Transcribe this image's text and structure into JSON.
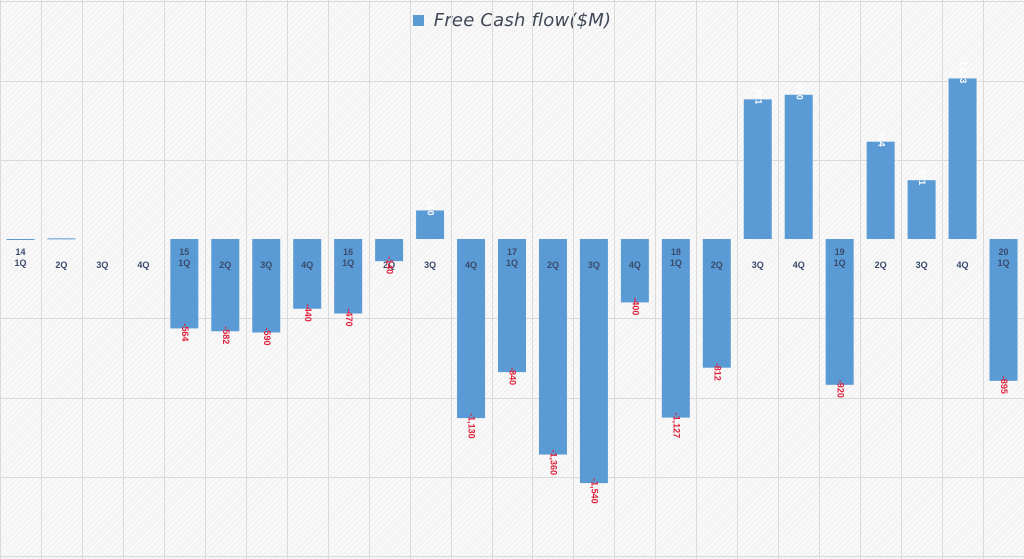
{
  "legend": {
    "label": "Free Cash flow($M)"
  },
  "colors": {
    "bar": "#5b9bd5",
    "negative_label": "#e0203a",
    "positive_label": "#ffffff",
    "category_label": "#3a4a6b",
    "grid": "#dadada"
  },
  "chart_data": {
    "type": "bar",
    "categories": [
      {
        "year": "14",
        "quarter": "1Q"
      },
      {
        "year": "",
        "quarter": "2Q"
      },
      {
        "year": "",
        "quarter": "3Q"
      },
      {
        "year": "",
        "quarter": "4Q"
      },
      {
        "year": "15",
        "quarter": "1Q"
      },
      {
        "year": "",
        "quarter": "2Q"
      },
      {
        "year": "",
        "quarter": "3Q"
      },
      {
        "year": "",
        "quarter": "4Q"
      },
      {
        "year": "16",
        "quarter": "1Q"
      },
      {
        "year": "",
        "quarter": "2Q"
      },
      {
        "year": "",
        "quarter": "3Q"
      },
      {
        "year": "",
        "quarter": "4Q"
      },
      {
        "year": "17",
        "quarter": "1Q"
      },
      {
        "year": "",
        "quarter": "2Q"
      },
      {
        "year": "",
        "quarter": "3Q"
      },
      {
        "year": "",
        "quarter": "4Q"
      },
      {
        "year": "18",
        "quarter": "1Q"
      },
      {
        "year": "",
        "quarter": "2Q"
      },
      {
        "year": "",
        "quarter": "3Q"
      },
      {
        "year": "",
        "quarter": "4Q"
      },
      {
        "year": "19",
        "quarter": "1Q"
      },
      {
        "year": "",
        "quarter": "2Q"
      },
      {
        "year": "",
        "quarter": "3Q"
      },
      {
        "year": "",
        "quarter": "4Q"
      },
      {
        "year": "20",
        "quarter": "1Q"
      }
    ],
    "series": [
      {
        "name": "Free Cash flow($M)",
        "values": [
          -2,
          4,
          0,
          0,
          -564,
          -582,
          -590,
          -440,
          -470,
          -140,
          180,
          -1130,
          -840,
          -1360,
          -1540,
          -400,
          -1127,
          -812,
          881,
          910,
          -920,
          614,
          371,
          1013,
          -895
        ],
        "labels": [
          "",
          "",
          "",
          "",
          "-564",
          "-582",
          "-590",
          "-440",
          "-470",
          "-140",
          "180",
          "-1,130",
          "-840",
          "-1,360",
          "-1,540",
          "-400",
          "-1,127",
          "-812",
          "881",
          "910",
          "-920",
          "614",
          "371",
          "1,013",
          "-895"
        ]
      }
    ],
    "ylim": [
      -2000,
      1500
    ],
    "grid": true,
    "legend_position": "top-center"
  }
}
